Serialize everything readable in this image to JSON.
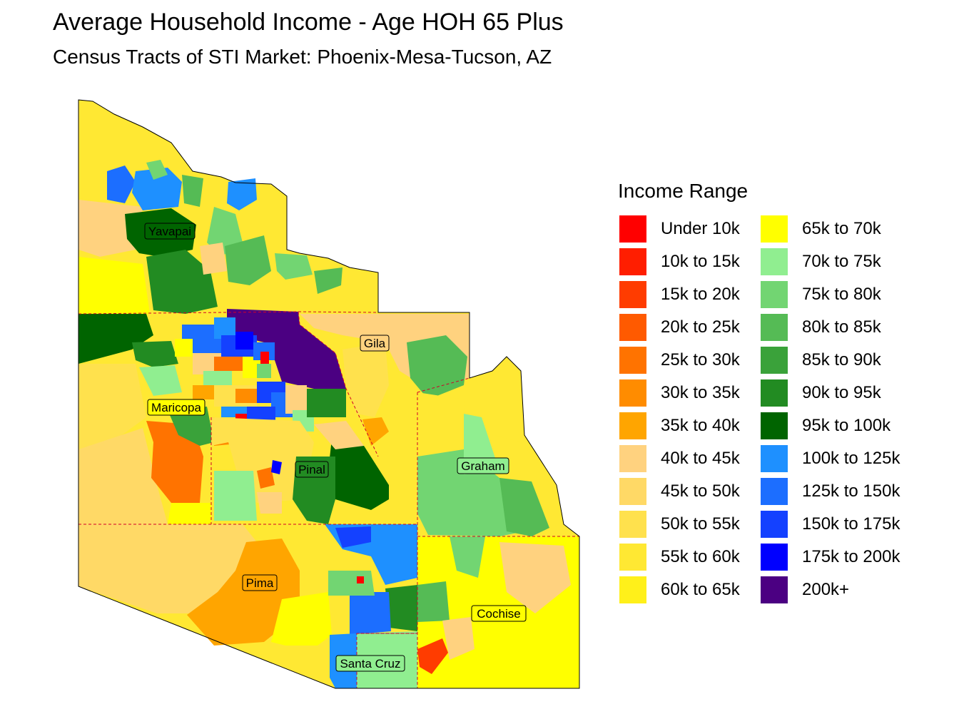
{
  "title": "Average Household Income - Age HOH 65 Plus",
  "subtitle": "Census Tracts of STI Market: Phoenix-Mesa-Tucson, AZ",
  "legend": {
    "title": "Income Range",
    "items": [
      {
        "label": "Under 10k",
        "color": "#FF0000"
      },
      {
        "label": "10k to 15k",
        "color": "#FF1E00"
      },
      {
        "label": "15k to 20k",
        "color": "#FF3C00"
      },
      {
        "label": "20k to 25k",
        "color": "#FF5A00"
      },
      {
        "label": "25k to 30k",
        "color": "#FF7300"
      },
      {
        "label": "30k to 35k",
        "color": "#FF8C00"
      },
      {
        "label": "35k to 40k",
        "color": "#FFA500"
      },
      {
        "label": "40k to 45k",
        "color": "#FFD27F"
      },
      {
        "label": "45k to 50k",
        "color": "#FFD966"
      },
      {
        "label": "50k to 55k",
        "color": "#FFE14D"
      },
      {
        "label": "55k to 60k",
        "color": "#FFE833"
      },
      {
        "label": "60k to 65k",
        "color": "#FFF01A"
      },
      {
        "label": "65k to 70k",
        "color": "#FFFF00"
      },
      {
        "label": "70k to 75k",
        "color": "#90EE90"
      },
      {
        "label": "75k to 80k",
        "color": "#72D572"
      },
      {
        "label": "80k to 85k",
        "color": "#55BB55"
      },
      {
        "label": "85k to 90k",
        "color": "#3AA23A"
      },
      {
        "label": "90k to 95k",
        "color": "#228B22"
      },
      {
        "label": "95k to 100k",
        "color": "#006400"
      },
      {
        "label": "100k to 125k",
        "color": "#1E90FF"
      },
      {
        "label": "125k to 150k",
        "color": "#1C6EFF"
      },
      {
        "label": "150k to 175k",
        "color": "#1441FF"
      },
      {
        "label": "175k to 200k",
        "color": "#0000FF"
      },
      {
        "label": "200k+",
        "color": "#4B0082"
      }
    ]
  },
  "counties": [
    {
      "name": "Yavapai"
    },
    {
      "name": "Gila"
    },
    {
      "name": "Maricopa"
    },
    {
      "name": "Pinal"
    },
    {
      "name": "Graham"
    },
    {
      "name": "Pima"
    },
    {
      "name": "Cochise"
    },
    {
      "name": "Santa Cruz"
    }
  ]
}
